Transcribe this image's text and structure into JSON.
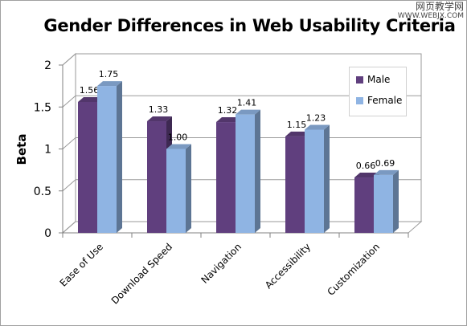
{
  "chart_data": {
    "type": "bar",
    "title": "Gender Differences in Web Usability Criteria",
    "xlabel": "",
    "ylabel": "Beta",
    "ylim": [
      0,
      2
    ],
    "yticks": [
      "0",
      "0.5",
      "1",
      "1.5",
      "2"
    ],
    "categories": [
      "Ease of Use",
      "Download Speed",
      "Navigation",
      "Accessibility",
      "Customization"
    ],
    "series": [
      {
        "name": "Male",
        "values": [
          1.56,
          1.33,
          1.32,
          1.15,
          0.66
        ],
        "labels": [
          "1.56",
          "1.33",
          "1.32",
          "1.15",
          "0.66"
        ],
        "color": "#603f7e"
      },
      {
        "name": "Female",
        "values": [
          1.75,
          1.0,
          1.41,
          1.23,
          0.69
        ],
        "labels": [
          "1.75",
          "1.00",
          "1.41",
          "1.23",
          "0.69"
        ],
        "color": "#8fb4e3"
      }
    ],
    "grid": true,
    "legend_position": "right"
  },
  "watermark": {
    "line1": "网页教学网",
    "line2": "WWW.WEBJX.COM"
  }
}
